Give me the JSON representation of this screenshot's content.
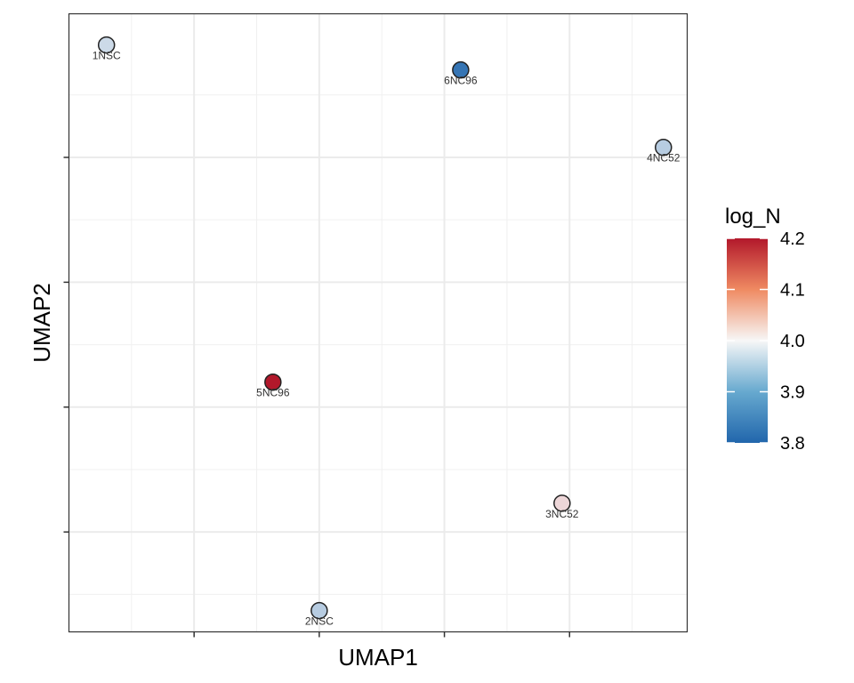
{
  "chart_data": {
    "type": "scatter",
    "title": "",
    "xlabel": "UMAP1",
    "ylabel": "UMAP2",
    "xlim": [
      -2.5,
      2.44
    ],
    "ylim": [
      -2.8,
      2.15
    ],
    "x_major_ticks": [
      -1.5,
      -0.5,
      0.5,
      1.5
    ],
    "y_major_ticks": [
      -2,
      -1,
      0,
      1
    ],
    "tick_labels_shown": false,
    "grid": true,
    "points": [
      {
        "label": "1NSC",
        "x": -2.2,
        "y": 1.9,
        "log_N": 3.96
      },
      {
        "label": "6NC96",
        "x": 0.63,
        "y": 1.7,
        "log_N": 3.82
      },
      {
        "label": "4NC52",
        "x": 2.25,
        "y": 1.08,
        "log_N": 3.94
      },
      {
        "label": "5NC96",
        "x": -0.87,
        "y": -0.8,
        "log_N": 4.2
      },
      {
        "label": "3NC52",
        "x": 1.44,
        "y": -1.77,
        "log_N": 4.03
      },
      {
        "label": "2NSC",
        "x": -0.5,
        "y": -2.63,
        "log_N": 3.94
      }
    ],
    "colorbar": {
      "title": "log_N",
      "min": 3.8,
      "max": 4.2,
      "midpoint": 4.0,
      "ticks": [
        "3.8",
        "3.9",
        "4.0",
        "4.1",
        "4.2"
      ],
      "low_color": "#2166AC",
      "mid_color": "#F7F7F7",
      "high_color": "#B2182B",
      "placement": "right"
    }
  }
}
